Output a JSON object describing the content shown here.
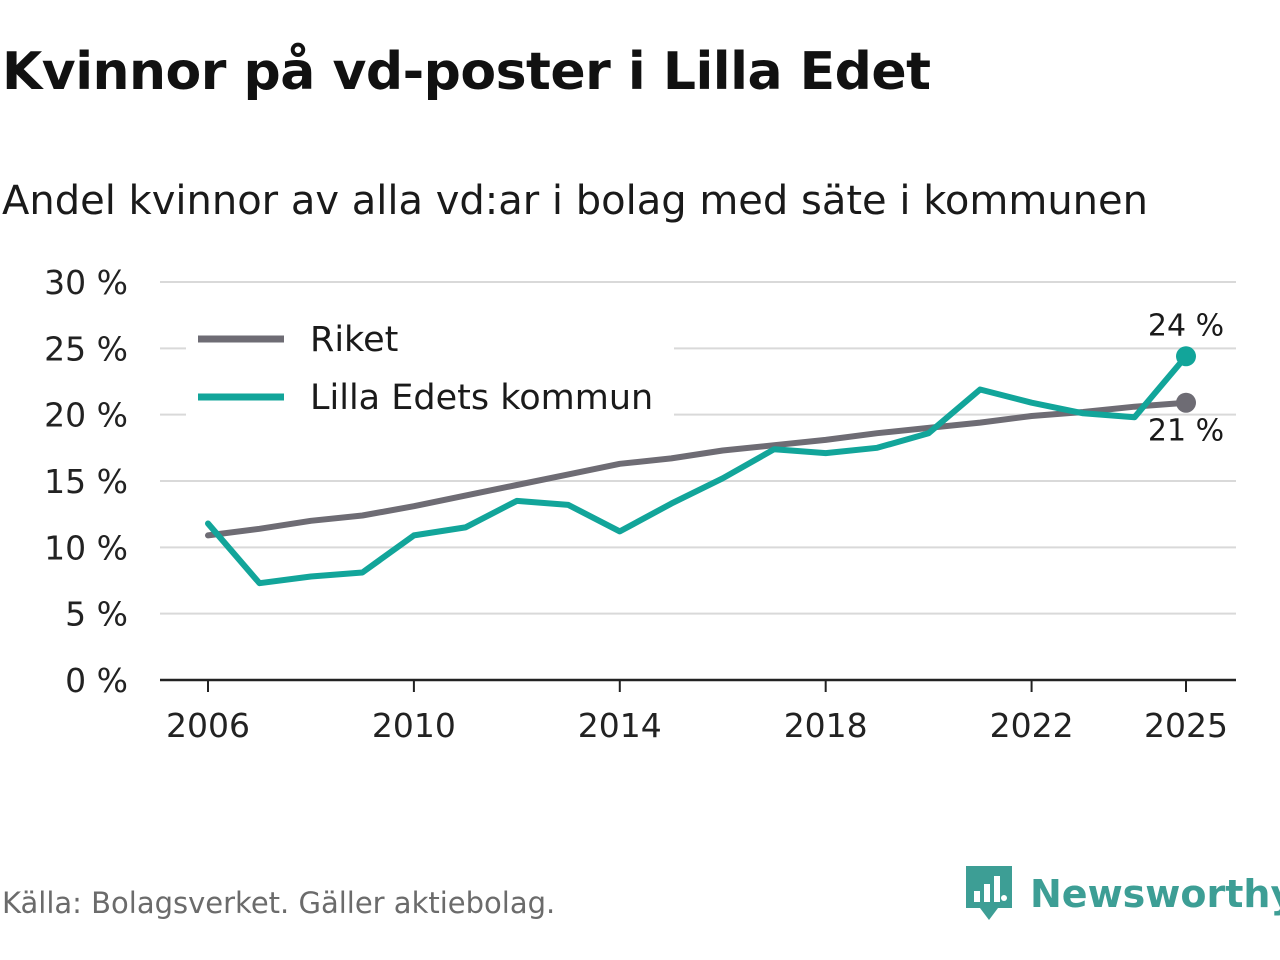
{
  "header": {
    "title": "Kvinnor på vd-poster i Lilla Edet",
    "subtitle": "Andel kvinnor av alla vd:ar i bolag med säte i kommunen"
  },
  "footer": {
    "source": "Källa: Bolagsverket. Gäller aktiebolag.",
    "brand": "Newsworthy"
  },
  "colors": {
    "riket": "#6e6c74",
    "kommun": "#12a59a",
    "grid": "#d9d9d9",
    "axis": "#222222",
    "brand": "#3d9e95"
  },
  "chart_data": {
    "type": "line",
    "title": "Kvinnor på vd-poster i Lilla Edet",
    "subtitle": "Andel kvinnor av alla vd:ar i bolag med säte i kommunen",
    "xlabel": "",
    "ylabel": "",
    "x": [
      2006,
      2007,
      2008,
      2009,
      2010,
      2011,
      2012,
      2013,
      2014,
      2015,
      2016,
      2017,
      2018,
      2019,
      2020,
      2021,
      2022,
      2023,
      2024,
      2025
    ],
    "xlim": [
      2006,
      2025
    ],
    "x_ticks": [
      2006,
      2010,
      2014,
      2018,
      2022,
      2025
    ],
    "ylim": [
      0,
      30
    ],
    "y_ticks": [
      0,
      5,
      10,
      15,
      20,
      25,
      30
    ],
    "y_tick_labels": [
      "0 %",
      "5 %",
      "10 %",
      "15 %",
      "20 %",
      "25 %",
      "30 %"
    ],
    "grid": true,
    "legend_position": "top-left",
    "series": [
      {
        "name": "Riket",
        "color": "#6e6c74",
        "values": [
          10.9,
          11.4,
          12.0,
          12.4,
          13.1,
          13.9,
          14.7,
          15.5,
          16.3,
          16.7,
          17.3,
          17.7,
          18.1,
          18.6,
          19.0,
          19.4,
          19.9,
          20.2,
          20.6,
          20.9
        ],
        "end_label": "21 %"
      },
      {
        "name": "Lilla Edets kommun",
        "color": "#12a59a",
        "values": [
          11.8,
          7.3,
          7.8,
          8.1,
          10.9,
          11.5,
          13.5,
          13.2,
          11.2,
          13.3,
          15.2,
          17.4,
          17.1,
          17.5,
          18.6,
          21.9,
          20.9,
          20.1,
          19.8,
          24.4
        ],
        "end_label": "24 %"
      }
    ]
  }
}
